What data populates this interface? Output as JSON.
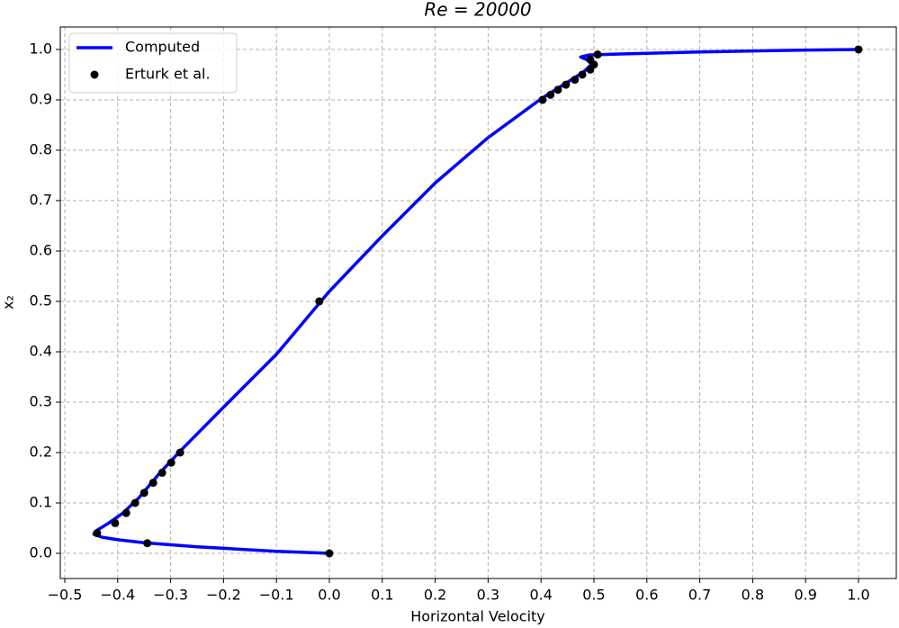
{
  "chart_data": {
    "type": "line",
    "title": "Re = 20000",
    "xlabel": "Horizontal Velocity",
    "ylabel": "x₂",
    "xlim": [
      -0.5085,
      1.0714
    ],
    "ylim": [
      -0.05,
      1.0446
    ],
    "xticks": [
      {
        "value": -0.5,
        "label": "−0.5"
      },
      {
        "value": -0.4,
        "label": "−0.4"
      },
      {
        "value": -0.3,
        "label": "−0.3"
      },
      {
        "value": -0.2,
        "label": "−0.2"
      },
      {
        "value": -0.1,
        "label": "−0.1"
      },
      {
        "value": 0,
        "label": "0.0"
      },
      0.1,
      0.2,
      0.3,
      0.4,
      0.5,
      0.6,
      0.7,
      0.8,
      0.9,
      {
        "value": 1,
        "label": "1.0"
      }
    ],
    "yticks": [
      {
        "value": 0,
        "label": "0.0"
      },
      0.1,
      0.2,
      0.3,
      0.4,
      0.5,
      0.6,
      0.7,
      0.8,
      0.9,
      {
        "value": 1,
        "label": "1.0"
      }
    ],
    "grid": true,
    "legend": "upper left",
    "series": [
      {
        "name": "Computed",
        "type": "line",
        "color": "#0000ff",
        "x": [
          0,
          -0.05,
          -0.1,
          -0.15,
          -0.2,
          -0.25,
          -0.3,
          -0.35,
          -0.4,
          -0.43,
          -0.445,
          -0.44,
          -0.42,
          -0.39,
          -0.36,
          -0.32,
          -0.28,
          -0.2,
          -0.1,
          0,
          0.1,
          0.2,
          0.3,
          0.4,
          0.45,
          0.48,
          0.495,
          0.49,
          0.475,
          0.49,
          0.55,
          0.7,
          0.85,
          1.0
        ],
        "values": [
          0,
          0.002,
          0.004,
          0.007,
          0.01,
          0.013,
          0.017,
          0.021,
          0.027,
          0.032,
          0.038,
          0.045,
          0.058,
          0.08,
          0.11,
          0.16,
          0.205,
          0.29,
          0.395,
          0.52,
          0.63,
          0.735,
          0.825,
          0.902,
          0.935,
          0.955,
          0.97,
          0.978,
          0.985,
          0.989,
          0.991,
          0.995,
          0.998,
          1.0
        ]
      },
      {
        "name": "Erturk et al.",
        "type": "scatter",
        "color": "#000000",
        "x": [
          1.0,
          0.507,
          0.493,
          0.5,
          0.493,
          0.478,
          0.464,
          0.447,
          0.432,
          0.418,
          0.403,
          -0.019,
          -0.282,
          -0.299,
          -0.316,
          -0.333,
          -0.35,
          -0.367,
          -0.384,
          -0.405,
          -0.439,
          -0.344,
          0.0
        ],
        "values": [
          1.0,
          0.99,
          0.98,
          0.97,
          0.96,
          0.95,
          0.94,
          0.93,
          0.92,
          0.91,
          0.9,
          0.5,
          0.2,
          0.18,
          0.16,
          0.14,
          0.12,
          0.1,
          0.08,
          0.06,
          0.04,
          0.02,
          0.0
        ]
      }
    ]
  }
}
